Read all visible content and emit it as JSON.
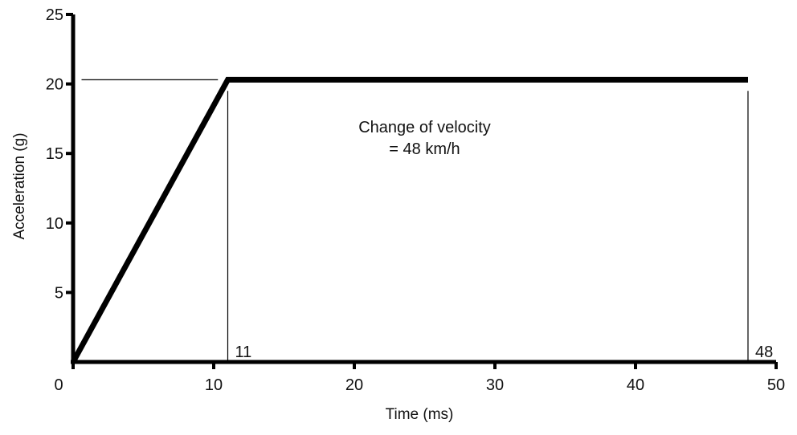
{
  "chart_data": {
    "type": "line",
    "title": "",
    "xlabel": "Time (ms)",
    "ylabel": "Acceleration (g)",
    "xlim": [
      0,
      50
    ],
    "ylim": [
      0,
      25
    ],
    "x_ticks": [
      0,
      10,
      20,
      30,
      40,
      50
    ],
    "x_tick_labels": [
      "0",
      "10",
      "20",
      "30",
      "40",
      "50"
    ],
    "y_ticks": [
      5,
      10,
      15,
      20,
      25
    ],
    "y_tick_labels": [
      "5",
      "10",
      "15",
      "20",
      "25"
    ],
    "grid": false,
    "series": [
      {
        "x": [
          0,
          11,
          48
        ],
        "y": [
          0,
          20.3,
          20.3
        ]
      }
    ],
    "reference_lines": [
      {
        "orientation": "vertical",
        "x": 11,
        "y_range": [
          0,
          19.5
        ]
      },
      {
        "orientation": "vertical",
        "x": 48,
        "y_range": [
          0,
          19.5
        ]
      },
      {
        "orientation": "horizontal",
        "y": 20.3,
        "x_range": [
          0.6,
          10.3
        ]
      }
    ],
    "marker_labels": [
      {
        "x": 11,
        "text": "11"
      },
      {
        "x": 48,
        "text": "48"
      }
    ],
    "annotation": {
      "lines": [
        "Change of velocity",
        "= 48 km/h"
      ],
      "x": 25,
      "y": 16.5
    },
    "colors": {
      "line": "#000000",
      "axis": "#000000"
    }
  }
}
